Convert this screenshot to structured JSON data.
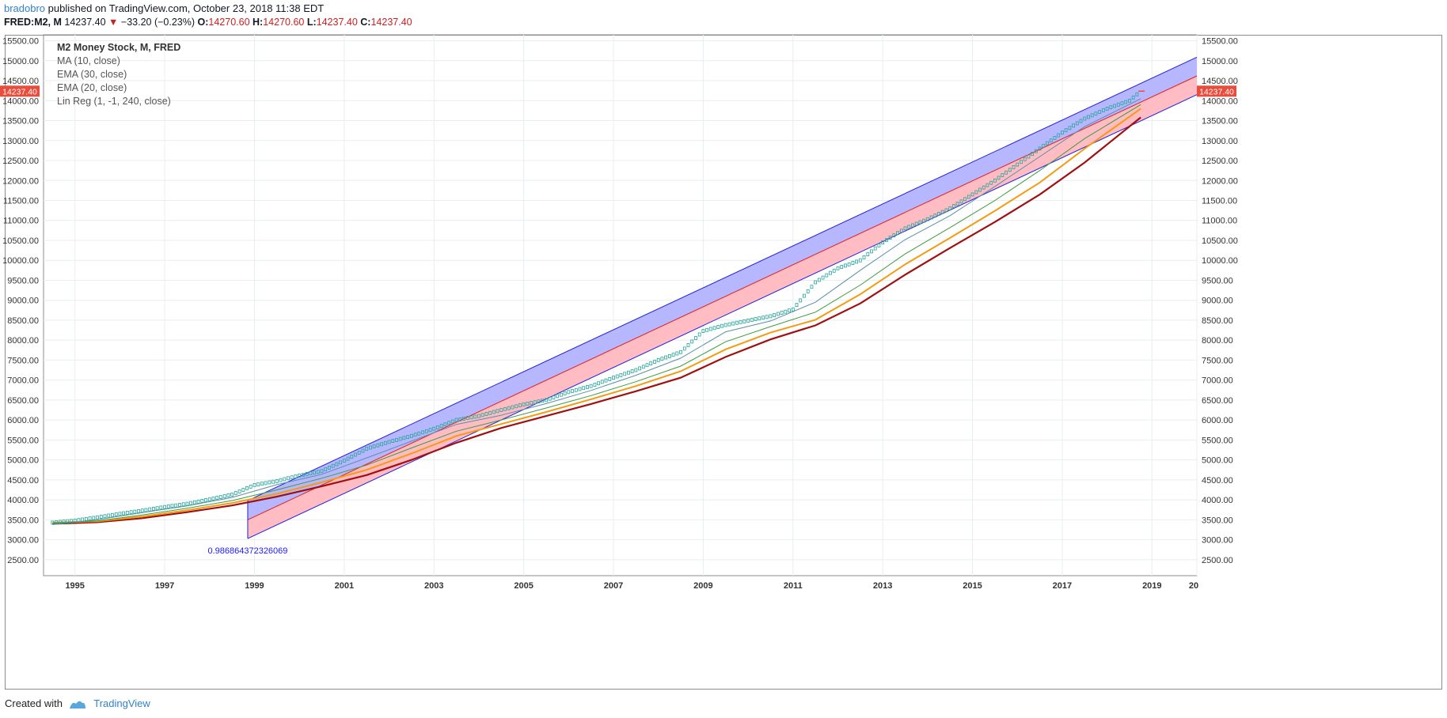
{
  "header": {
    "user": "bradobro",
    "published": "published on TradingView.com, October 23, 2018 11:38 EDT",
    "symbol": "FRED:M2, M",
    "price": "14237.40",
    "change": "−33.20 (−0.23%)",
    "open_label": "O:",
    "open": "14270.60",
    "high_label": "H:",
    "high": "14270.60",
    "low_label": "L:",
    "low": "14237.40",
    "close_label": "C:",
    "close": "14237.40"
  },
  "legend": {
    "title": "M2 Money Stock, M, FRED",
    "items": [
      "MA (10, close)",
      "EMA (30, close)",
      "EMA (20, close)",
      "Lin Reg (1, -1, 240, close)"
    ]
  },
  "footer": {
    "created": "Created with",
    "brand": "TradingView"
  },
  "colors": {
    "candle": "#26a69a",
    "ma10": "#5b8fa8",
    "ema20": "#3f9b3f",
    "ema20b": "#f39c12",
    "ema30": "#a01010",
    "upper_fill": "#b3b3ff",
    "lower_fill": "#ffb8c0",
    "channel_edge": "#2020e0",
    "mid_line": "#e02020",
    "price_tag": "#e74c3c"
  },
  "chart_data": {
    "type": "line",
    "title": "M2 Money Stock, M, FRED",
    "ylim": [
      2100,
      15650
    ],
    "xlim": [
      1994.3,
      2020.0
    ],
    "y_ticks": [
      "2500.00",
      "3000.00",
      "3500.00",
      "4000.00",
      "4500.00",
      "5000.00",
      "5500.00",
      "6000.00",
      "6500.00",
      "7000.00",
      "7500.00",
      "8000.00",
      "8500.00",
      "9000.00",
      "9500.00",
      "10000.00",
      "10500.00",
      "11000.00",
      "11500.00",
      "12000.00",
      "12500.00",
      "13000.00",
      "13500.00",
      "14000.00",
      "14500.00",
      "15000.00",
      "15500.00"
    ],
    "x_ticks": [
      "1995",
      "1997",
      "1999",
      "2001",
      "2003",
      "2005",
      "2007",
      "2009",
      "2011",
      "2013",
      "2015",
      "2017",
      "2019",
      "20"
    ],
    "last_price_label": "14237.40",
    "last_price": 14237.4,
    "series": [
      {
        "name": "M2 Money Stock, M, FRED",
        "x": [
          1994.5,
          1995.0,
          1995.5,
          1996.0,
          1996.5,
          1997.0,
          1997.5,
          1998.0,
          1998.5,
          1999.0,
          1999.5,
          2000.0,
          2000.5,
          2001.0,
          2001.5,
          2002.0,
          2002.5,
          2003.0,
          2003.5,
          2004.0,
          2004.5,
          2005.0,
          2005.5,
          2006.0,
          2006.5,
          2007.0,
          2007.5,
          2008.0,
          2008.5,
          2009.0,
          2009.5,
          2010.0,
          2010.5,
          2011.0,
          2011.5,
          2012.0,
          2012.5,
          2013.0,
          2013.5,
          2014.0,
          2014.5,
          2015.0,
          2015.5,
          2016.0,
          2016.5,
          2017.0,
          2017.5,
          2018.0,
          2018.5,
          2018.75
        ],
        "y": [
          3430,
          3480,
          3560,
          3650,
          3730,
          3820,
          3900,
          4010,
          4130,
          4370,
          4470,
          4610,
          4720,
          4980,
          5280,
          5450,
          5600,
          5780,
          6000,
          6100,
          6250,
          6390,
          6500,
          6700,
          6850,
          7060,
          7250,
          7500,
          7700,
          8230,
          8380,
          8490,
          8600,
          8770,
          9450,
          9800,
          10000,
          10450,
          10800,
          11030,
          11300,
          11650,
          12000,
          12400,
          12800,
          13200,
          13550,
          13800,
          14000,
          14237.4
        ]
      },
      {
        "name": "MA (10, close)",
        "x": [
          1994.5,
          1995.5,
          1996.5,
          1997.5,
          1998.5,
          1999.5,
          2000.5,
          2001.5,
          2002.5,
          2003.5,
          2004.5,
          2005.5,
          2006.5,
          2007.5,
          2008.5,
          2009.5,
          2010.5,
          2011.5,
          2012.5,
          2013.5,
          2014.5,
          2015.5,
          2016.5,
          2017.5,
          2018.75
        ],
        "y": [
          3380,
          3500,
          3680,
          3850,
          4060,
          4380,
          4640,
          5050,
          5470,
          5890,
          6120,
          6410,
          6740,
          7120,
          7550,
          8210,
          8480,
          8950,
          9750,
          10520,
          11120,
          11850,
          12600,
          13350,
          14050
        ]
      },
      {
        "name": "EMA (20, close)",
        "x": [
          1994.5,
          1995.5,
          1996.5,
          1997.5,
          1998.5,
          1999.5,
          2000.5,
          2001.5,
          2002.5,
          2003.5,
          2004.5,
          2005.5,
          2006.5,
          2007.5,
          2008.5,
          2009.5,
          2010.5,
          2011.5,
          2012.5,
          2013.5,
          2014.5,
          2015.5,
          2016.5,
          2017.5,
          2018.75
        ],
        "y": [
          3420,
          3470,
          3620,
          3790,
          3980,
          4250,
          4540,
          4870,
          5300,
          5720,
          6000,
          6300,
          6610,
          6960,
          7350,
          7960,
          8340,
          8700,
          9380,
          10160,
          10820,
          11500,
          12250,
          13050,
          13900
        ]
      },
      {
        "name": "EMA (20, close)",
        "x": [
          1994.5,
          1995.5,
          1996.5,
          1997.5,
          1998.5,
          1999.5,
          2000.5,
          2001.5,
          2002.5,
          2003.5,
          2004.5,
          2005.5,
          2006.5,
          2007.5,
          2008.5,
          2009.5,
          2010.5,
          2011.5,
          2012.5,
          2013.5,
          2014.5,
          2015.5,
          2016.5,
          2017.5,
          2018.75
        ],
        "y": [
          3430,
          3460,
          3580,
          3740,
          3920,
          4150,
          4440,
          4750,
          5160,
          5600,
          5900,
          6200,
          6520,
          6850,
          7220,
          7770,
          8190,
          8510,
          9150,
          9900,
          10560,
          11240,
          11950,
          12800,
          13800
        ]
      },
      {
        "name": "EMA (30, close)",
        "x": [
          1994.5,
          1995.5,
          1996.5,
          1997.5,
          1998.5,
          1999.5,
          2000.5,
          2001.5,
          2002.5,
          2003.5,
          2004.5,
          2005.5,
          2006.5,
          2007.5,
          2008.5,
          2009.5,
          2010.5,
          2011.5,
          2012.5,
          2013.5,
          2014.5,
          2015.5,
          2016.5,
          2017.5,
          2018.75
        ],
        "y": [
          3400,
          3440,
          3540,
          3690,
          3860,
          4080,
          4340,
          4620,
          5000,
          5430,
          5800,
          6100,
          6400,
          6720,
          7060,
          7580,
          8020,
          8370,
          8920,
          9640,
          10310,
          10960,
          11650,
          12450,
          13580
        ]
      }
    ],
    "regression_channel": {
      "x_start": 1998.85,
      "x_end": 2020.0,
      "upper": [
        3980,
        15090
      ],
      "mid": [
        3500,
        14620
      ],
      "lower": [
        3030,
        14150
      ],
      "r_label": "0.986864372326069"
    },
    "grid": true
  }
}
